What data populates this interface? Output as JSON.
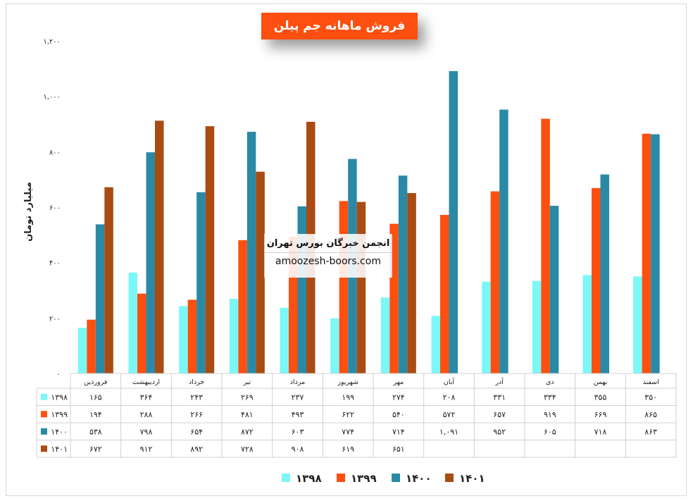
{
  "chart_data": {
    "type": "bar",
    "title": "فروش ماهانه جم پیلن",
    "ylabel": "میلیارد تومان",
    "ylim": [
      0,
      1200
    ],
    "yticks": [
      "۰",
      "۲۰۰",
      "۴۰۰",
      "۶۰۰",
      "۸۰۰",
      "۱,۰۰۰",
      "۱,۲۰۰"
    ],
    "categories": [
      "فروردین",
      "اردیبهشت",
      "خرداد",
      "تیر",
      "مرداد",
      "شهریور",
      "مهر",
      "آبان",
      "آذر",
      "دی",
      "بهمن",
      "اسفند"
    ],
    "series": [
      {
        "name": "۱۳۹۸",
        "color": "#7cf7f7",
        "values": [
          165,
          364,
          243,
          269,
          237,
          199,
          274,
          208,
          331,
          334,
          355,
          350
        ],
        "labels": [
          "۱۶۵",
          "۳۶۴",
          "۲۴۳",
          "۲۶۹",
          "۲۳۷",
          "۱۹۹",
          "۲۷۴",
          "۲۰۸",
          "۳۳۱",
          "۳۳۴",
          "۳۵۵",
          "۳۵۰"
        ]
      },
      {
        "name": "۱۳۹۹",
        "color": "#fc4f10",
        "values": [
          194,
          288,
          266,
          481,
          493,
          622,
          540,
          572,
          657,
          919,
          669,
          865
        ],
        "labels": [
          "۱۹۴",
          "۲۸۸",
          "۲۶۶",
          "۴۸۱",
          "۴۹۳",
          "۶۲۲",
          "۵۴۰",
          "۵۷۲",
          "۶۵۷",
          "۹۱۹",
          "۶۶۹",
          "۸۶۵"
        ]
      },
      {
        "name": "۱۴۰۰",
        "color": "#2a8aa5",
        "values": [
          538,
          798,
          654,
          872,
          603,
          774,
          714,
          1091,
          952,
          605,
          718,
          863
        ],
        "labels": [
          "۵۳۸",
          "۷۹۸",
          "۶۵۴",
          "۸۷۲",
          "۶۰۳",
          "۷۷۴",
          "۷۱۴",
          "۱,۰۹۱",
          "۹۵۲",
          "۶۰۵",
          "۷۱۸",
          "۸۶۳"
        ]
      },
      {
        "name": "۱۴۰۱",
        "color": "#a94b13",
        "values": [
          672,
          912,
          892,
          728,
          908,
          619,
          651,
          null,
          null,
          null,
          null,
          null
        ],
        "labels": [
          "۶۷۲",
          "۹۱۲",
          "۸۹۲",
          "۷۲۸",
          "۹۰۸",
          "۶۱۹",
          "۶۵۱",
          "",
          "",
          "",
          "",
          ""
        ]
      }
    ],
    "legend": "bottom",
    "grid": false,
    "data_table": true
  },
  "watermark": {
    "title": "انجمن خبرگان بورس تهران",
    "url": "amoozesh-boors.com"
  }
}
